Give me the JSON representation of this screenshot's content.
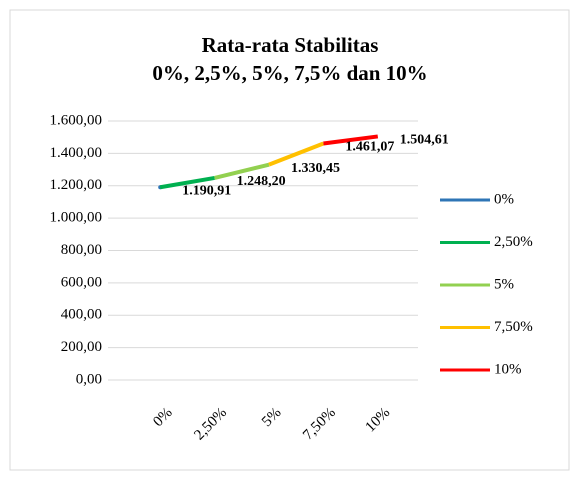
{
  "chart_data": {
    "type": "line",
    "title": "Rata-rata Stabilitas",
    "subtitle": "0%, 2,5%, 5%, 7,5% dan 10%",
    "categories": [
      "0%",
      "2,50%",
      "5%",
      "7,50%",
      "10%"
    ],
    "series": [
      {
        "name": "0%",
        "color": "#2e75b6",
        "values": [
          1190.91,
          null,
          null,
          null,
          null
        ],
        "value_labels": [
          "1.190,91",
          null,
          null,
          null,
          null
        ]
      },
      {
        "name": "2,50%",
        "color": "#00b050",
        "values": [
          1190.91,
          1248.2,
          null,
          null,
          null
        ],
        "value_labels": [
          null,
          "1.248,20",
          null,
          null,
          null
        ]
      },
      {
        "name": "5%",
        "color": "#92d050",
        "values": [
          null,
          1248.2,
          1330.45,
          null,
          null
        ],
        "value_labels": [
          null,
          null,
          "1.330,45",
          null,
          null
        ]
      },
      {
        "name": "7,50%",
        "color": "#ffc000",
        "values": [
          null,
          null,
          1330.45,
          1461.07,
          null
        ],
        "value_labels": [
          null,
          null,
          null,
          "1.461,07",
          null
        ]
      },
      {
        "name": "10%",
        "color": "#ff0000",
        "values": [
          null,
          null,
          null,
          1461.07,
          1504.61
        ],
        "value_labels": [
          null,
          null,
          null,
          null,
          "1.504,61"
        ]
      }
    ],
    "ylim": [
      0,
      1600
    ],
    "yticks": [
      {
        "value": 0,
        "label": "0,00"
      },
      {
        "value": 200,
        "label": "200,00"
      },
      {
        "value": 400,
        "label": "400,00"
      },
      {
        "value": 600,
        "label": "600,00"
      },
      {
        "value": 800,
        "label": "800,00"
      },
      {
        "value": 1000,
        "label": "1.000,00"
      },
      {
        "value": 1200,
        "label": "1.200,00"
      },
      {
        "value": 1400,
        "label": "1.400,00"
      },
      {
        "value": 1600,
        "label": "1.600,00"
      }
    ],
    "grid": true,
    "legend": "right"
  }
}
